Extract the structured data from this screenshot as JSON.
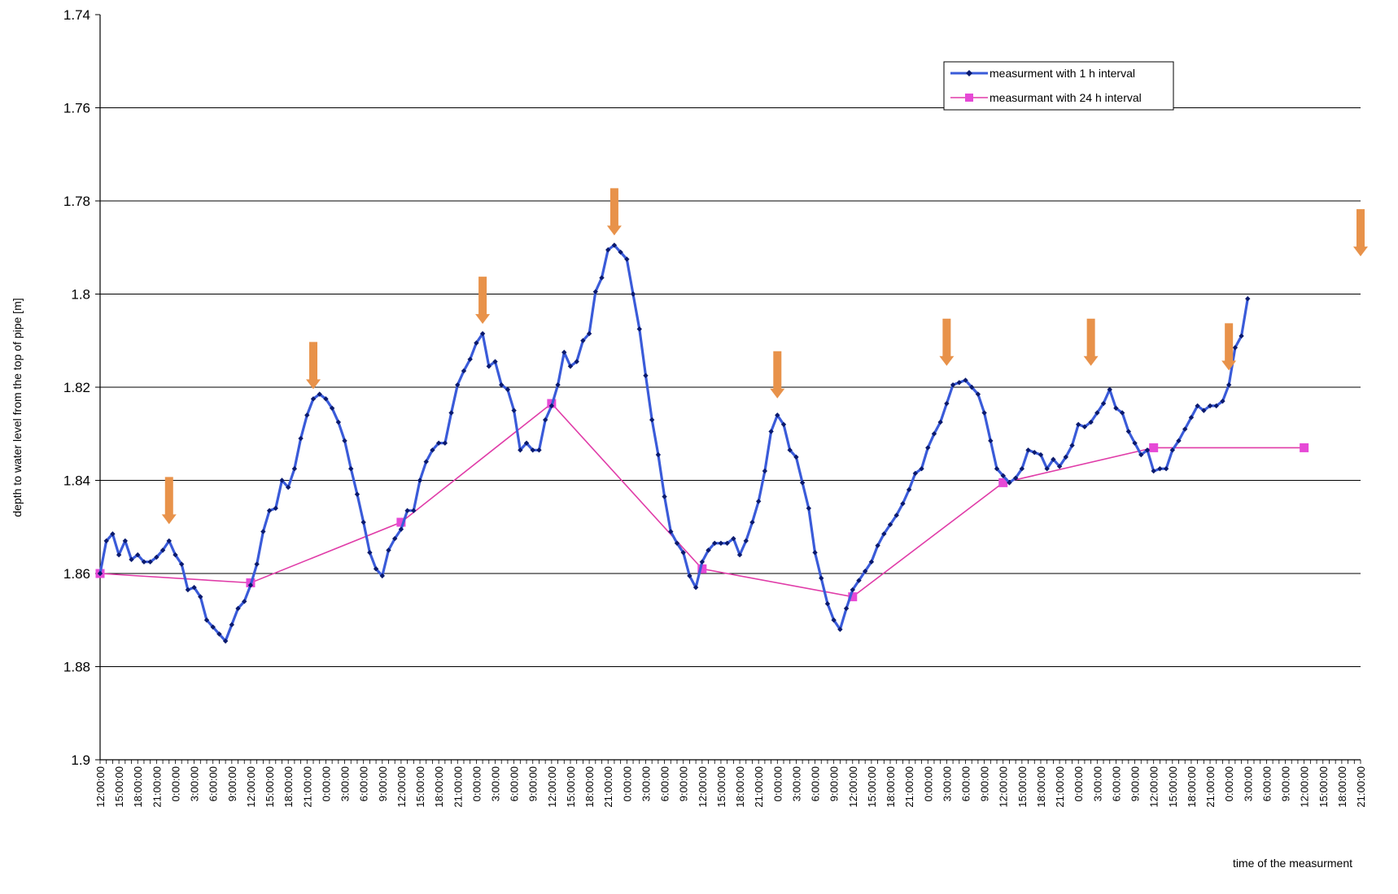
{
  "chart_data": {
    "type": "line",
    "title": "",
    "xlabel": "time of the measurment",
    "ylabel": "depth to water level from the top of pipe [m]",
    "ylim": [
      1.74,
      1.9
    ],
    "y_inverted": true,
    "y_ticks": [
      "1.74",
      "1.76",
      "1.78",
      "1.8",
      "1.82",
      "1.84",
      "1.86",
      "1.88",
      "1.9"
    ],
    "grid": true,
    "legend_position": "top-right",
    "x_tick_labels": [
      "12:00:00",
      "15:00:00",
      "18:00:00",
      "21:00:00",
      "0:00:00",
      "3:00:00",
      "6:00:00",
      "9:00:00",
      "12:00:00",
      "15:00:00",
      "18:00:00",
      "21:00:00",
      "0:00:00",
      "3:00:00",
      "6:00:00",
      "9:00:00",
      "12:00:00",
      "15:00:00",
      "18:00:00",
      "21:00:00",
      "0:00:00",
      "3:00:00",
      "6:00:00",
      "9:00:00",
      "12:00:00",
      "15:00:00",
      "18:00:00",
      "21:00:00",
      "0:00:00",
      "3:00:00",
      "6:00:00",
      "9:00:00",
      "12:00:00",
      "15:00:00",
      "18:00:00",
      "21:00:00",
      "0:00:00",
      "3:00:00",
      "6:00:00",
      "9:00:00",
      "12:00:00",
      "15:00:00",
      "18:00:00",
      "21:00:00",
      "0:00:00",
      "3:00:00",
      "6:00:00",
      "9:00:00",
      "12:00:00",
      "15:00:00",
      "18:00:00",
      "21:00:00",
      "0:00:00",
      "3:00:00",
      "6:00:00",
      "9:00:00",
      "12:00:00",
      "15:00:00",
      "18:00:00",
      "21:00:00",
      "0:00:00",
      "3:00:00",
      "6:00:00",
      "9:00:00",
      "12:00:00",
      "15:00:00",
      "18:00:00",
      "21:00:00"
    ],
    "x_hours_total": 201,
    "series": [
      {
        "name": "measurment with 1 h interval",
        "color": "#3a5bd9",
        "marker_color": "#0a1a6e",
        "values": [
          1.86,
          1.853,
          1.8515,
          1.856,
          1.853,
          1.857,
          1.856,
          1.8575,
          1.8575,
          1.8565,
          1.855,
          1.853,
          1.856,
          1.858,
          1.8635,
          1.863,
          1.865,
          1.87,
          1.8715,
          1.873,
          1.8745,
          1.871,
          1.8675,
          1.866,
          1.8625,
          1.858,
          1.851,
          1.8465,
          1.846,
          1.84,
          1.8415,
          1.8375,
          1.831,
          1.826,
          1.8225,
          1.8215,
          1.8225,
          1.8245,
          1.8275,
          1.8315,
          1.8375,
          1.843,
          1.849,
          1.8555,
          1.859,
          1.8605,
          1.855,
          1.8525,
          1.8505,
          1.8465,
          1.8465,
          1.84,
          1.836,
          1.8335,
          1.832,
          1.832,
          1.8255,
          1.8195,
          1.8165,
          1.814,
          1.8105,
          1.8085,
          1.8155,
          1.8145,
          1.8195,
          1.8205,
          1.825,
          1.8335,
          1.832,
          1.8335,
          1.8335,
          1.827,
          1.824,
          1.8195,
          1.8125,
          1.8155,
          1.8145,
          1.81,
          1.8085,
          1.7995,
          1.7965,
          1.7905,
          1.7895,
          1.791,
          1.7925,
          1.8,
          1.8075,
          1.8175,
          1.827,
          1.8345,
          1.8435,
          1.851,
          1.8535,
          1.8555,
          1.8605,
          1.863,
          1.8575,
          1.855,
          1.8535,
          1.8535,
          1.8535,
          1.8525,
          1.856,
          1.853,
          1.849,
          1.8445,
          1.838,
          1.8295,
          1.826,
          1.828,
          1.8335,
          1.835,
          1.8405,
          1.846,
          1.8555,
          1.861,
          1.8665,
          1.87,
          1.872,
          1.8675,
          1.8635,
          1.8615,
          1.8595,
          1.8575,
          1.854,
          1.8515,
          1.8495,
          1.8475,
          1.845,
          1.842,
          1.8385,
          1.8375,
          1.833,
          1.83,
          1.8275,
          1.8235,
          1.8195,
          1.819,
          1.8185,
          1.82,
          1.8215,
          1.8255,
          1.8315,
          1.8375,
          1.839,
          1.8405,
          1.8395,
          1.8375,
          1.8335,
          1.834,
          1.8345,
          1.8375,
          1.8355,
          1.837,
          1.835,
          1.8325,
          1.828,
          1.8285,
          1.8275,
          1.8255,
          1.8235,
          1.8205,
          1.8245,
          1.8255,
          1.8295,
          1.832,
          1.8345,
          1.8335,
          1.838,
          1.8375,
          1.8375,
          1.8335,
          1.8315,
          1.829,
          1.8265,
          1.824,
          1.825,
          1.824,
          1.824,
          1.823,
          1.8195,
          1.8115,
          1.809,
          1.801
        ]
      },
      {
        "name": "measurmant with 24 h interval",
        "color": "#e03ca8",
        "marker_color": "#e649d6",
        "x_hours": [
          0,
          24,
          48,
          72,
          96,
          120,
          144,
          168,
          192
        ],
        "values": [
          1.86,
          1.862,
          1.849,
          1.8235,
          1.859,
          1.865,
          1.8405,
          1.833,
          1.833
        ]
      }
    ],
    "annotations": {
      "type": "arrow-down",
      "color": "#e8924a",
      "x_hours": [
        11,
        34,
        61,
        82,
        108,
        135,
        158,
        180,
        201
      ],
      "y_depth": [
        1.8515,
        1.8225,
        1.8085,
        1.7895,
        1.8245,
        1.8175,
        1.8175,
        1.8185,
        1.794
      ]
    }
  }
}
